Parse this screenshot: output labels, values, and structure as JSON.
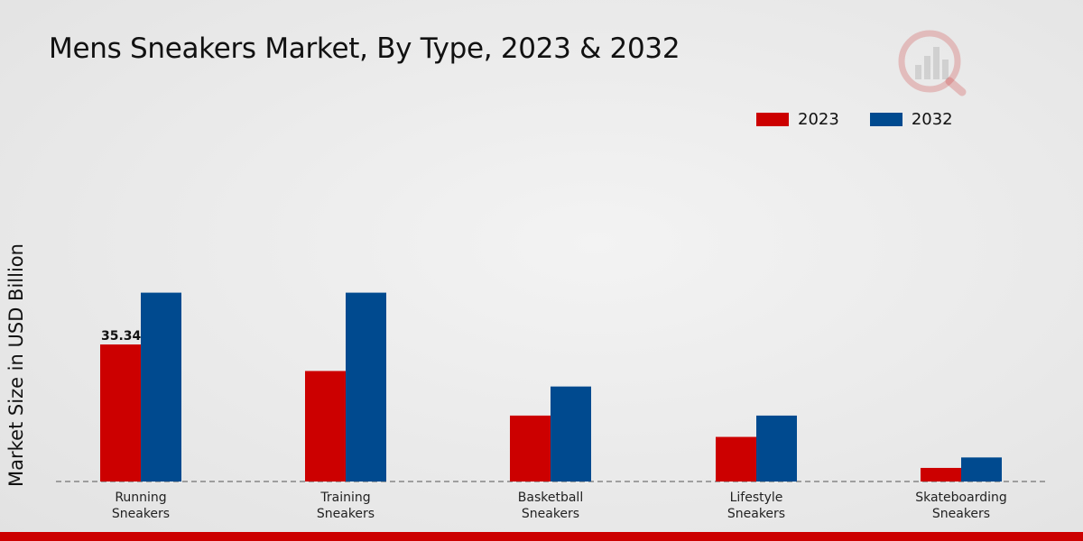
{
  "header": {
    "title": "Mens Sneakers Market, By Type, 2023 & 2032"
  },
  "colors": {
    "series_2023": "#cc0000",
    "series_2032": "#004a8f",
    "baseline": "#555555",
    "logo": "#cc3333"
  },
  "logo_icon": "bar-chart-magnifier-icon",
  "chart_data": {
    "type": "bar",
    "title": "Mens Sneakers Market, By Type, 2023 & 2032",
    "xlabel": "",
    "ylabel": "Market Size in USD Billion",
    "ylim": [
      0,
      130
    ],
    "grid": false,
    "legend_position": "top-right",
    "categories": [
      [
        "Running",
        "Sneakers"
      ],
      [
        "Training",
        "Sneakers"
      ],
      [
        "Basketball",
        "Sneakers"
      ],
      [
        "Lifestyle",
        "Sneakers"
      ],
      [
        "Skateboarding",
        "Sneakers"
      ]
    ],
    "series": [
      {
        "name": "2023",
        "values": [
          35.34,
          28.5,
          17.0,
          11.5,
          3.5
        ]
      },
      {
        "name": "2032",
        "values": [
          48.7,
          48.7,
          24.5,
          17.0,
          6.2
        ]
      }
    ],
    "data_labels": [
      {
        "series": 0,
        "category": 0,
        "text": "35.34"
      }
    ]
  }
}
